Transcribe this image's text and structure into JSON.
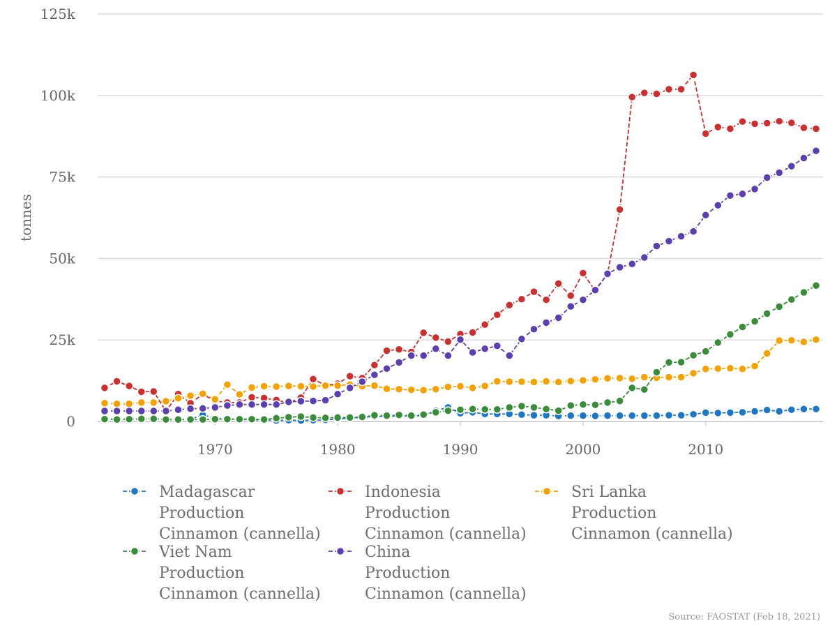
{
  "source_note": "Source: FAOSTAT (Feb 18, 2021)",
  "chart_data": {
    "type": "line",
    "title": "",
    "xlabel": "",
    "ylabel": "tonnes",
    "xlim": [
      1961,
      2019
    ],
    "ylim": [
      0,
      125000
    ],
    "y_ticks": [
      0,
      25000,
      50000,
      75000,
      100000,
      125000
    ],
    "y_tick_labels": [
      "0",
      "25k",
      "50k",
      "75k",
      "100k",
      "125k"
    ],
    "x_ticks": [
      1970,
      1980,
      1990,
      2000,
      2010
    ],
    "x_tick_labels": [
      "1970",
      "1980",
      "1990",
      "2000",
      "2010"
    ],
    "grid": "horizontal",
    "legend_position": "bottom",
    "x": [
      1961,
      1962,
      1963,
      1964,
      1965,
      1966,
      1967,
      1968,
      1969,
      1970,
      1971,
      1972,
      1973,
      1974,
      1975,
      1976,
      1977,
      1978,
      1979,
      1980,
      1981,
      1982,
      1983,
      1984,
      1985,
      1986,
      1987,
      1988,
      1989,
      1990,
      1991,
      1992,
      1993,
      1994,
      1995,
      1996,
      1997,
      1998,
      1999,
      2000,
      2001,
      2002,
      2003,
      2004,
      2005,
      2006,
      2007,
      2008,
      2009,
      2010,
      2011,
      2012,
      2013,
      2014,
      2015,
      2016,
      2017,
      2018,
      2019
    ],
    "series": [
      {
        "name": "Madagascar Production Cinnamon (cannella)",
        "legend_lines": [
          "Madagascar",
          "Production",
          "Cinnamon (cannella)"
        ],
        "color": "#1f77c4",
        "values": [
          800,
          700,
          700,
          700,
          800,
          600,
          500,
          700,
          2000,
          1000,
          800,
          600,
          500,
          400,
          300,
          400,
          300,
          400,
          500,
          800,
          1000,
          1300,
          1500,
          1600,
          1700,
          1600,
          1800,
          3300,
          4300,
          2500,
          2800,
          2300,
          2300,
          2300,
          2100,
          1900,
          1900,
          1700,
          1800,
          1800,
          1700,
          1800,
          1800,
          1800,
          1800,
          1800,
          1900,
          1900,
          2200,
          2700,
          2600,
          2700,
          2800,
          3100,
          3500,
          3100,
          3600,
          3800,
          3800
        ]
      },
      {
        "name": "Indonesia Production Cinnamon (cannella)",
        "legend_lines": [
          "Indonesia",
          "Production",
          "Cinnamon (cannella)"
        ],
        "color": "#cc2f2f",
        "values": [
          10300,
          12300,
          10900,
          9100,
          9200,
          3100,
          8400,
          5600,
          8300,
          6300,
          5800,
          5800,
          7400,
          7200,
          6600,
          5700,
          7300,
          13000,
          11100,
          11600,
          13900,
          13300,
          17300,
          21700,
          22100,
          21300,
          27200,
          25700,
          24500,
          26800,
          27300,
          29700,
          32700,
          35700,
          37500,
          39800,
          37300,
          42300,
          38600,
          45500,
          40100,
          45300,
          65000,
          99500,
          100800,
          100500,
          101900,
          101900,
          106300,
          88300,
          90300,
          89800,
          92000,
          91300,
          91500,
          92100,
          91600,
          90100,
          89800
        ]
      },
      {
        "name": "Sri Lanka Production Cinnamon (cannella)",
        "legend_lines": [
          "Sri Lanka",
          "Production",
          "Cinnamon (cannella)"
        ],
        "color": "#f5a100",
        "values": [
          5600,
          5400,
          5400,
          5800,
          5800,
          6200,
          7100,
          7900,
          8500,
          6800,
          11300,
          8300,
          10400,
          10800,
          10700,
          10900,
          10800,
          10700,
          11000,
          11000,
          11300,
          10800,
          11000,
          10000,
          9900,
          9700,
          9600,
          9900,
          10600,
          10800,
          10300,
          10900,
          12300,
          12200,
          12200,
          12100,
          12300,
          12100,
          12400,
          12600,
          12900,
          13200,
          13300,
          13100,
          13600,
          13400,
          13600,
          13600,
          14800,
          16100,
          16200,
          16300,
          16100,
          17000,
          20900,
          24800,
          24900,
          24400,
          25100
        ]
      },
      {
        "name": "Viet Nam Production Cinnamon (cannella)",
        "legend_lines": [
          "Viet Nam",
          "Production",
          "Cinnamon (cannella)"
        ],
        "color": "#3a8b3a",
        "values": [
          700,
          600,
          700,
          800,
          800,
          600,
          600,
          600,
          600,
          700,
          700,
          700,
          700,
          600,
          1000,
          1300,
          1500,
          1200,
          1100,
          1200,
          1200,
          1400,
          1900,
          1800,
          2000,
          1800,
          2100,
          2800,
          3300,
          3600,
          3800,
          3700,
          3700,
          4300,
          4700,
          4300,
          3800,
          3300,
          4900,
          5200,
          5100,
          5800,
          6300,
          10300,
          9800,
          15100,
          18100,
          18200,
          20300,
          21500,
          24200,
          26700,
          29000,
          30700,
          33100,
          35200,
          37400,
          39600,
          41700
        ]
      },
      {
        "name": "China Production Cinnamon (cannella)",
        "legend_lines": [
          "China",
          "Production",
          "Cinnamon (cannella)"
        ],
        "color": "#5b3fb0",
        "values": [
          3200,
          3200,
          3200,
          3200,
          3200,
          3200,
          3600,
          3900,
          4000,
          4300,
          4900,
          5200,
          5200,
          5200,
          5200,
          6000,
          6200,
          6300,
          6500,
          8400,
          10300,
          12200,
          14300,
          16200,
          18100,
          20200,
          20200,
          22300,
          20200,
          25100,
          21200,
          22300,
          23200,
          20200,
          25300,
          28300,
          30300,
          31800,
          35300,
          37300,
          40300,
          45300,
          47300,
          48300,
          50300,
          53800,
          55300,
          56800,
          58300,
          63300,
          66300,
          69300,
          69800,
          71300,
          74800,
          76300,
          78300,
          80800,
          83000
        ]
      }
    ]
  }
}
